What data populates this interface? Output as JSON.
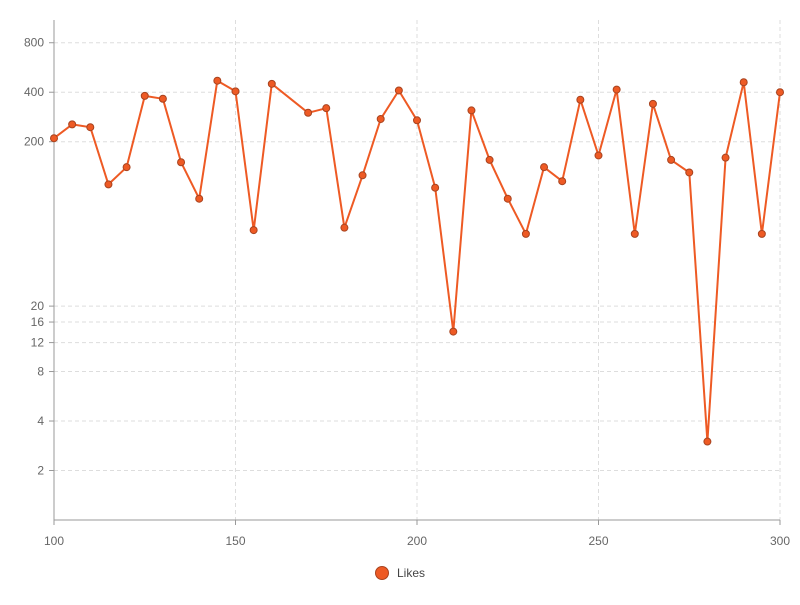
{
  "chart_data": {
    "type": "line",
    "title": "",
    "xlabel": "",
    "ylabel": "",
    "xlim": [
      100,
      300
    ],
    "ylim": [
      1,
      1100
    ],
    "yscale": "log",
    "grid": true,
    "legend_position": "bottom-center",
    "x_ticks": [
      100,
      150,
      200,
      250,
      300
    ],
    "y_ticks": [
      2,
      4,
      8,
      12,
      16,
      20,
      200,
      400,
      800
    ],
    "series": [
      {
        "name": "Likes",
        "color": "#ee5a24",
        "x": [
          100,
          105,
          110,
          115,
          120,
          125,
          130,
          135,
          140,
          145,
          150,
          155,
          160,
          170,
          175,
          180,
          185,
          190,
          195,
          200,
          205,
          210,
          215,
          220,
          225,
          230,
          235,
          240,
          245,
          250,
          255,
          260,
          265,
          270,
          275,
          280,
          285,
          290,
          295,
          300
        ],
        "values": [
          210,
          255,
          245,
          110,
          140,
          380,
          365,
          150,
          90,
          470,
          405,
          58,
          450,
          300,
          320,
          60,
          125,
          275,
          410,
          270,
          105,
          14,
          310,
          155,
          90,
          55,
          140,
          115,
          360,
          165,
          415,
          55,
          340,
          155,
          130,
          3,
          160,
          460,
          55,
          400
        ]
      }
    ]
  }
}
